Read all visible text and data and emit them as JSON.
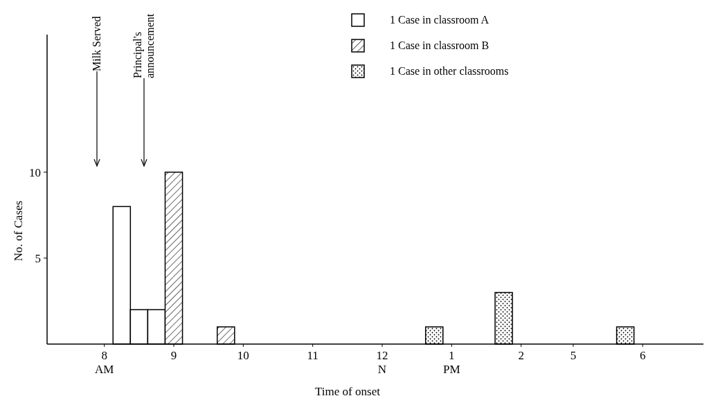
{
  "chart_data": {
    "type": "bar",
    "stacked": true,
    "xlabel": "Time of onset",
    "ylabel": "No. of Cases",
    "categories": [
      null,
      null,
      "8\nAM",
      null,
      null,
      null,
      "9",
      null,
      null,
      null,
      "10",
      null,
      null,
      null,
      "11",
      null,
      null,
      null,
      "12\nN",
      null,
      null,
      null,
      "1\nPM",
      null,
      null,
      null,
      "2",
      null,
      null,
      "5",
      null,
      null,
      null,
      "6",
      null,
      null,
      null
    ],
    "series": [
      {
        "name": "1 Case in classroom A",
        "color": "#000000",
        "values": [
          0,
          0,
          0,
          8,
          2,
          2,
          0,
          0,
          0,
          0,
          0,
          0,
          0,
          0,
          0,
          0,
          0,
          0,
          0,
          0,
          0,
          0,
          0,
          0,
          0,
          0,
          0,
          0,
          0,
          0,
          0,
          0,
          0,
          0,
          0,
          0,
          0
        ]
      },
      {
        "name": "1 Case in classroom B",
        "color": "#000000",
        "values": [
          0,
          0,
          0,
          0,
          0,
          0,
          10,
          0,
          0,
          1,
          0,
          0,
          0,
          0,
          0,
          0,
          0,
          0,
          0,
          0,
          0,
          0,
          0,
          0,
          0,
          0,
          0,
          0,
          0,
          0,
          0,
          0,
          0,
          0,
          0,
          0,
          0
        ]
      },
      {
        "name": "1 Case in other classrooms",
        "color": "#000000",
        "values": [
          0,
          0,
          0,
          0,
          0,
          0,
          0,
          0,
          0,
          0,
          0,
          0,
          0,
          0,
          0,
          0,
          0,
          0,
          0,
          0,
          0,
          1,
          0,
          0,
          0,
          3,
          0,
          0,
          0,
          0,
          0,
          0,
          1,
          0,
          0,
          0,
          0
        ]
      }
    ],
    "ylim": [
      0,
      18
    ],
    "yticks": [
      5,
      10
    ],
    "annotations": [
      "Milk Served",
      "Principal's\nannouncement"
    ],
    "legend": "top right",
    "grid": false
  }
}
